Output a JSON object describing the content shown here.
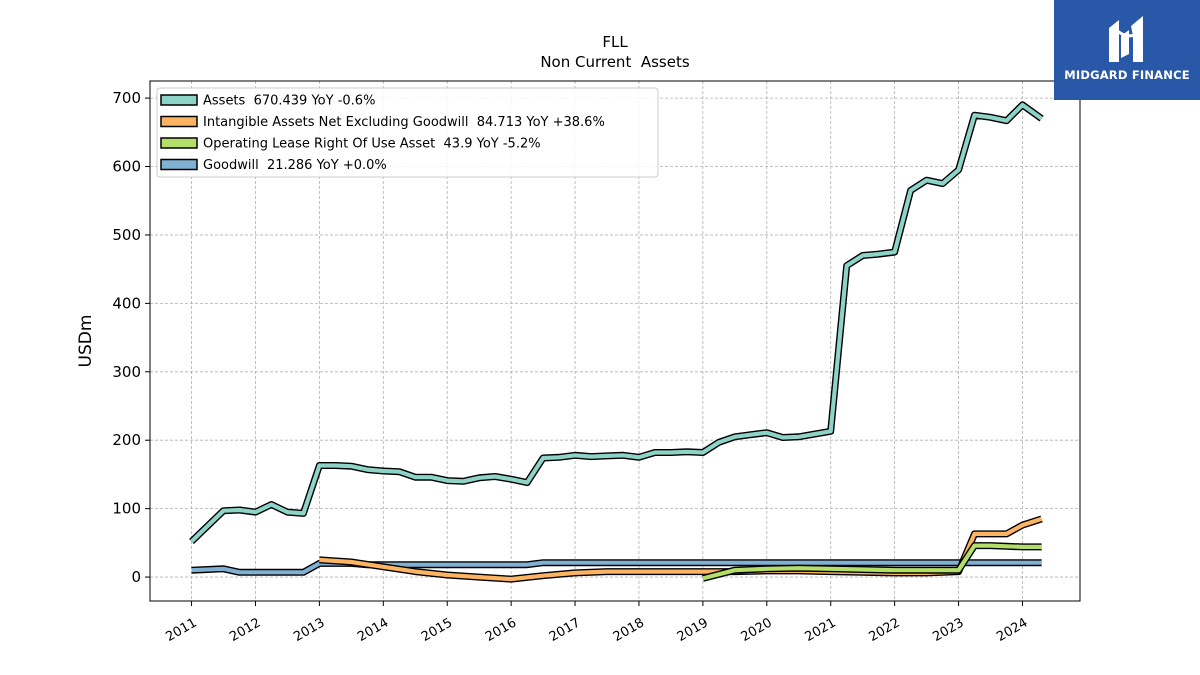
{
  "chart_data": {
    "type": "line",
    "title": "FLL",
    "subtitle": "Non Current  Assets",
    "ylabel": "USDm",
    "xlabel": "",
    "ylim": [
      -35,
      725
    ],
    "xlim": [
      2010.35,
      2024.9
    ],
    "yticks": [
      0,
      100,
      200,
      300,
      400,
      500,
      600,
      700
    ],
    "xticks": [
      2011,
      2012,
      2013,
      2014,
      2015,
      2016,
      2017,
      2018,
      2019,
      2020,
      2021,
      2022,
      2023,
      2024
    ],
    "grid": true,
    "legend_position": "top-left",
    "series": [
      {
        "name": "Assets  670.439 YoY -0.6%",
        "color": "#8dd3c7",
        "x": [
          2011.0,
          2011.5,
          2011.75,
          2012.0,
          2012.25,
          2012.5,
          2012.75,
          2013.0,
          2013.25,
          2013.5,
          2013.75,
          2014.0,
          2014.25,
          2014.5,
          2014.75,
          2015.0,
          2015.25,
          2015.5,
          2015.75,
          2016.0,
          2016.25,
          2016.5,
          2016.75,
          2017.0,
          2017.25,
          2017.5,
          2017.75,
          2018.0,
          2018.25,
          2018.5,
          2018.75,
          2019.0,
          2019.25,
          2019.5,
          2019.75,
          2020.0,
          2020.25,
          2020.5,
          2020.75,
          2021.0,
          2021.25,
          2021.5,
          2021.75,
          2022.0,
          2022.25,
          2022.5,
          2022.75,
          2023.0,
          2023.25,
          2023.5,
          2023.75,
          2024.0,
          2024.3
        ],
        "values": [
          52,
          97,
          98,
          95,
          106,
          95,
          93,
          163,
          163,
          162,
          157,
          155,
          154,
          146,
          146,
          141,
          140,
          145,
          147,
          143,
          138,
          174,
          175,
          178,
          176,
          177,
          178,
          175,
          182,
          182,
          183,
          182,
          197,
          205,
          208,
          211,
          204,
          205,
          209,
          213,
          455,
          470,
          472,
          475,
          565,
          580,
          575,
          595,
          675,
          672,
          667,
          690,
          670
        ]
      },
      {
        "name": "Intangible Assets Net Excluding Goodwill  84.713 YoY +38.6%",
        "color": "#fdb462",
        "x": [
          2013.0,
          2013.5,
          2014.0,
          2014.5,
          2015.0,
          2015.5,
          2016.0,
          2016.5,
          2017.0,
          2017.5,
          2018.0,
          2018.5,
          2019.0,
          2019.5,
          2020.0,
          2020.5,
          2021.0,
          2021.5,
          2022.0,
          2022.5,
          2023.0,
          2023.25,
          2023.5,
          2023.75,
          2024.0,
          2024.3
        ],
        "values": [
          25,
          22,
          15,
          8,
          3,
          0,
          -3,
          2,
          6,
          8,
          8,
          8,
          8,
          8,
          9,
          9,
          8,
          7,
          6,
          6,
          8,
          63,
          63,
          63,
          76,
          85
        ]
      },
      {
        "name": "Operating Lease Right Of Use Asset  43.9 YoY -5.2%",
        "color": "#b3de69",
        "x": [
          2019.0,
          2019.5,
          2020.0,
          2020.5,
          2021.0,
          2021.5,
          2022.0,
          2022.5,
          2023.0,
          2023.25,
          2023.5,
          2023.75,
          2024.0,
          2024.3
        ],
        "values": [
          -2,
          10,
          12,
          13,
          12,
          11,
          10,
          10,
          10,
          46,
          46,
          45,
          44,
          44
        ]
      },
      {
        "name": "Goodwill  21.286 YoY +0.0%",
        "color": "#80b1d3",
        "x": [
          2011.0,
          2011.5,
          2011.75,
          2012.0,
          2012.5,
          2012.75,
          2013.0,
          2013.5,
          2013.75,
          2014.0,
          2014.5,
          2015.0,
          2015.5,
          2016.0,
          2016.25,
          2016.5,
          2017.0,
          2017.5,
          2018.0,
          2018.5,
          2019.0,
          2019.5,
          2020.0,
          2020.5,
          2021.0,
          2021.5,
          2022.0,
          2022.5,
          2023.0,
          2023.5,
          2024.0,
          2024.3
        ],
        "values": [
          10,
          12,
          7,
          7,
          7,
          7,
          20,
          20,
          18,
          18,
          18,
          18,
          18,
          18,
          18,
          21,
          21,
          21,
          21,
          21,
          21,
          21,
          21,
          21,
          21,
          21,
          21,
          21,
          21,
          21,
          21,
          21
        ]
      }
    ]
  },
  "logo": {
    "text": "MIDGARD FINANCE",
    "bg": "#2a58a8"
  }
}
